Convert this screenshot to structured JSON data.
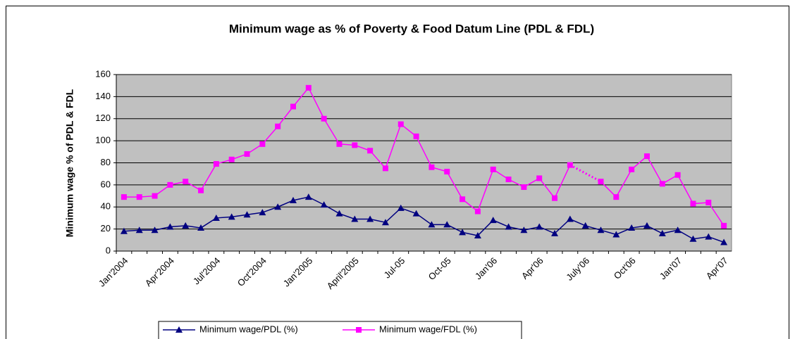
{
  "chart_data": {
    "type": "line",
    "title": "Minimum wage as % of Poverty & Food Datum Line (PDL & FDL)",
    "y_label": "Minimum wage % of PDL & FDL",
    "categories": [
      "Jan'2004",
      null,
      null,
      "Apr'2004",
      null,
      null,
      "Jul'2004",
      null,
      null,
      "Oct'2004",
      null,
      null,
      "Jan'2005",
      null,
      null,
      "April'2005",
      null,
      null,
      "Jul-05",
      null,
      null,
      "Oct-05",
      null,
      null,
      "Jan'06",
      null,
      null,
      "Apr'06",
      null,
      null,
      "July'06",
      null,
      null,
      "Oct'06",
      null,
      null,
      "Jan'07",
      null,
      null,
      "Apr'07"
    ],
    "series": [
      {
        "name": "Minimum wage/PDL (%)",
        "color": "#000080",
        "marker": "triangle",
        "values": [
          18,
          19,
          19,
          22,
          23,
          21,
          30,
          31,
          33,
          35,
          40,
          46,
          49,
          42,
          34,
          29,
          29,
          26,
          39,
          34,
          24,
          24,
          17,
          14,
          28,
          22,
          19,
          22,
          16,
          29,
          23,
          19,
          15,
          21,
          23,
          16,
          19,
          11,
          13,
          8
        ]
      },
      {
        "name": "Minimum wage/FDL (%)",
        "color": "#ff00ff",
        "marker": "square",
        "values": [
          49,
          49,
          50,
          60,
          63,
          55,
          79,
          83,
          88,
          97,
          113,
          131,
          148,
          120,
          97,
          96,
          91,
          75,
          115,
          104,
          76,
          72,
          47,
          36,
          74,
          65,
          58,
          66,
          48,
          78,
          null,
          63,
          49,
          74,
          86,
          61,
          69,
          43,
          44,
          23
        ]
      }
    ],
    "ylim": [
      0,
      160
    ],
    "yticks": [
      0,
      20,
      40,
      60,
      80,
      100,
      120,
      140,
      160
    ],
    "grid": true,
    "legend": "bottom",
    "plot_background": "#c0c0c0"
  }
}
